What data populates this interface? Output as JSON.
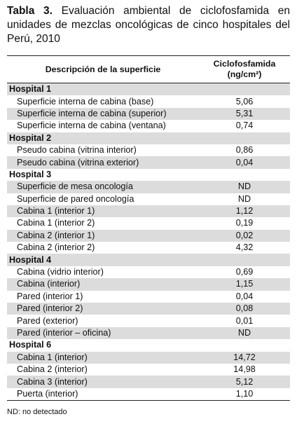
{
  "caption": {
    "label": "Tabla 3.",
    "text": "Evaluación ambiental de ciclofosfamida en unidades de mezclas oncológicas de cinco hospitales del Perú, 2010"
  },
  "table": {
    "header": [
      "Descripción de la superficie",
      "Ciclofosfamida",
      "(ng/cm²)"
    ],
    "groups": [
      {
        "name": "Hospital 1",
        "rows": [
          [
            "Superficie interna de cabina (base)",
            "5,06"
          ],
          [
            "Superficie interna de cabina (superior)",
            "5,31"
          ],
          [
            "Superficie interna de cabina (ventana)",
            "0,74"
          ]
        ]
      },
      {
        "name": "Hospital 2",
        "rows": [
          [
            "Pseudo cabina (vitrina interior)",
            "0,86"
          ],
          [
            "Pseudo cabina (vitrina exterior)",
            "0,04"
          ]
        ]
      },
      {
        "name": "Hospital 3",
        "rows": [
          [
            "Superficie de mesa oncología",
            "ND"
          ],
          [
            "Superficie de pared oncología",
            "ND"
          ],
          [
            "Cabina 1 (interior 1)",
            "1,12"
          ],
          [
            "Cabina 1 (interior 2)",
            "0,19"
          ],
          [
            "Cabina 2 (interior 1)",
            "0,02"
          ],
          [
            "Cabina 2 (interior 2)",
            "4,32"
          ]
        ]
      },
      {
        "name": "Hospital 4",
        "rows": [
          [
            "Cabina (vidrio interior)",
            "0,69"
          ],
          [
            "Cabina (interior)",
            "1,15"
          ],
          [
            "Pared (interior 1)",
            "0,04"
          ],
          [
            "Pared (interior 2)",
            "0,08"
          ],
          [
            "Pared (exterior)",
            "0,01"
          ],
          [
            "Pared (interior – oficina)",
            "ND"
          ]
        ]
      },
      {
        "name": "Hospital 6",
        "rows": [
          [
            "Cabina 1 (interior)",
            "14,72"
          ],
          [
            "Cabina 2 (interior)",
            "14,98"
          ],
          [
            "Cabina 3 (interior)",
            "5,12"
          ],
          [
            "Puerta (interior)",
            "1,10"
          ]
        ]
      }
    ]
  },
  "footnote": "ND: no detectado"
}
